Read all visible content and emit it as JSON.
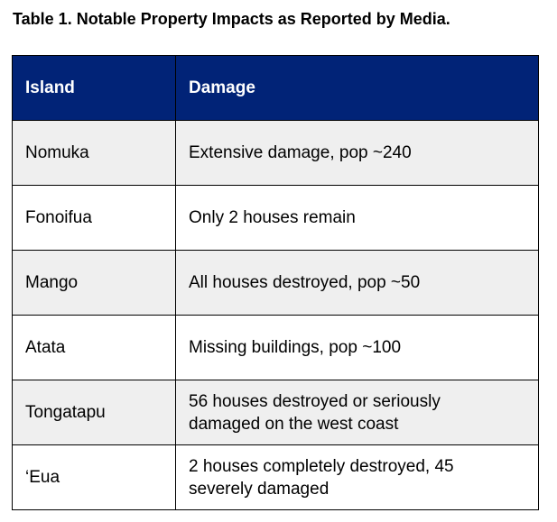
{
  "title": "Table 1. Notable Property Impacts as Reported by Media.",
  "table": {
    "header": [
      "Island",
      "Damage"
    ],
    "rows": [
      [
        "Nomuka",
        "Extensive damage, pop ~240"
      ],
      [
        "Fonoifua",
        "Only 2 houses remain"
      ],
      [
        "Mango",
        "All houses destroyed, pop ~50"
      ],
      [
        "Atata",
        "Missing buildings, pop ~100"
      ],
      [
        "Tongatapu",
        "56 houses destroyed or seriously damaged on the west coast"
      ],
      [
        "‘Eua",
        "2 houses completely destroyed, 45 severely damaged"
      ]
    ]
  }
}
